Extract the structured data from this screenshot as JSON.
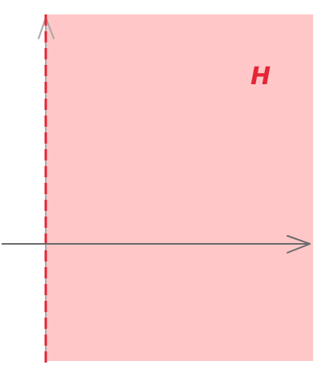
{
  "diagram": {
    "region": {
      "label": "H",
      "fill_color": "#ffc7c7",
      "label_color": "#e32636"
    },
    "boundary": {
      "style": "dashed",
      "color": "#e32636"
    },
    "axes": {
      "color": "#6b6b6b",
      "vertical_arrow": "up",
      "horizontal_arrow": "right"
    }
  }
}
